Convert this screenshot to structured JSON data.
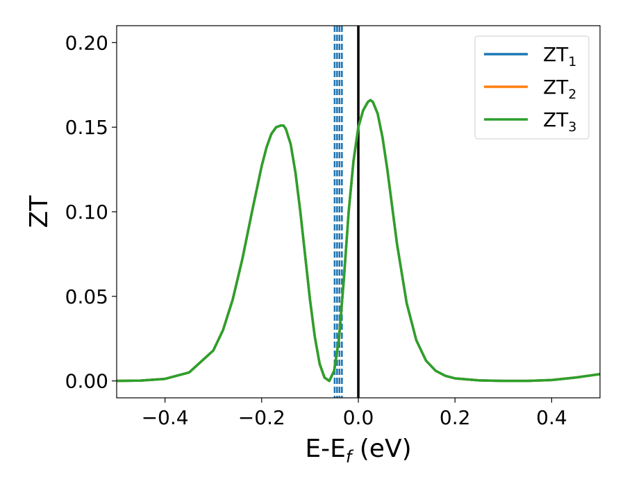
{
  "chart_data": {
    "type": "line",
    "title": "",
    "xlabel": "E-E",
    "xlabel_sub": "f",
    "xlabel_unit": " (eV)",
    "ylabel": "ZT",
    "xlim": [
      -0.5,
      0.5
    ],
    "ylim": [
      -0.01,
      0.21
    ],
    "xticks": [
      -0.4,
      -0.2,
      0.0,
      0.2,
      0.4
    ],
    "xtick_labels": [
      "−0.4",
      "−0.2",
      "0.0",
      "0.2",
      "0.4"
    ],
    "yticks": [
      0.0,
      0.05,
      0.1,
      0.15,
      0.2
    ],
    "ytick_labels": [
      "0.00",
      "0.05",
      "0.10",
      "0.15",
      "0.20"
    ],
    "grid": false,
    "legend_position": "top-right",
    "series": [
      {
        "name": "ZT",
        "sub": "1",
        "color": "#1f77b4",
        "x": [
          -0.5,
          -0.45,
          -0.4,
          -0.35,
          -0.3,
          -0.28,
          -0.26,
          -0.24,
          -0.22,
          -0.2,
          -0.19,
          -0.18,
          -0.17,
          -0.16,
          -0.155,
          -0.15,
          -0.14,
          -0.13,
          -0.12,
          -0.11,
          -0.1,
          -0.09,
          -0.08,
          -0.07,
          -0.06,
          -0.05,
          -0.04,
          -0.03,
          -0.02,
          -0.01,
          0.0,
          0.01,
          0.02,
          0.025,
          0.03,
          0.04,
          0.05,
          0.06,
          0.07,
          0.08,
          0.1,
          0.12,
          0.14,
          0.16,
          0.18,
          0.2,
          0.25,
          0.3,
          0.35,
          0.4,
          0.45,
          0.5
        ],
        "y": [
          0.0,
          0.0002,
          0.0012,
          0.005,
          0.018,
          0.03,
          0.048,
          0.072,
          0.1,
          0.127,
          0.138,
          0.146,
          0.15,
          0.151,
          0.151,
          0.149,
          0.14,
          0.123,
          0.1,
          0.074,
          0.048,
          0.026,
          0.01,
          0.002,
          0.0,
          0.006,
          0.025,
          0.06,
          0.1,
          0.13,
          0.15,
          0.16,
          0.165,
          0.166,
          0.165,
          0.158,
          0.144,
          0.125,
          0.103,
          0.081,
          0.046,
          0.024,
          0.012,
          0.006,
          0.003,
          0.0015,
          0.0003,
          0.0,
          0.0,
          0.0005,
          0.002,
          0.004
        ]
      },
      {
        "name": "ZT",
        "sub": "2",
        "color": "#ff7f0e",
        "x": [
          -0.5,
          -0.45,
          -0.4,
          -0.35,
          -0.3,
          -0.28,
          -0.26,
          -0.24,
          -0.22,
          -0.2,
          -0.19,
          -0.18,
          -0.17,
          -0.16,
          -0.155,
          -0.15,
          -0.14,
          -0.13,
          -0.12,
          -0.11,
          -0.1,
          -0.09,
          -0.08,
          -0.07,
          -0.06,
          -0.05,
          -0.04,
          -0.03,
          -0.02,
          -0.01,
          0.0,
          0.01,
          0.02,
          0.025,
          0.03,
          0.04,
          0.05,
          0.06,
          0.07,
          0.08,
          0.1,
          0.12,
          0.14,
          0.16,
          0.18,
          0.2,
          0.25,
          0.3,
          0.35,
          0.4,
          0.45,
          0.5
        ],
        "y": [
          0.0,
          0.0002,
          0.0012,
          0.005,
          0.018,
          0.03,
          0.048,
          0.072,
          0.1,
          0.127,
          0.138,
          0.146,
          0.15,
          0.151,
          0.151,
          0.149,
          0.14,
          0.123,
          0.1,
          0.074,
          0.048,
          0.026,
          0.01,
          0.002,
          0.0,
          0.006,
          0.025,
          0.06,
          0.1,
          0.13,
          0.15,
          0.16,
          0.165,
          0.166,
          0.165,
          0.158,
          0.144,
          0.125,
          0.103,
          0.081,
          0.046,
          0.024,
          0.012,
          0.006,
          0.003,
          0.0015,
          0.0003,
          0.0,
          0.0,
          0.0005,
          0.002,
          0.004
        ]
      },
      {
        "name": "ZT",
        "sub": "3",
        "color": "#2ca02c",
        "x": [
          -0.5,
          -0.45,
          -0.4,
          -0.35,
          -0.3,
          -0.28,
          -0.26,
          -0.24,
          -0.22,
          -0.2,
          -0.19,
          -0.18,
          -0.17,
          -0.16,
          -0.155,
          -0.15,
          -0.14,
          -0.13,
          -0.12,
          -0.11,
          -0.1,
          -0.09,
          -0.08,
          -0.07,
          -0.06,
          -0.05,
          -0.04,
          -0.03,
          -0.02,
          -0.01,
          0.0,
          0.01,
          0.02,
          0.025,
          0.03,
          0.04,
          0.05,
          0.06,
          0.07,
          0.08,
          0.1,
          0.12,
          0.14,
          0.16,
          0.18,
          0.2,
          0.25,
          0.3,
          0.35,
          0.4,
          0.45,
          0.5
        ],
        "y": [
          0.0,
          0.0002,
          0.0012,
          0.005,
          0.018,
          0.03,
          0.048,
          0.072,
          0.1,
          0.127,
          0.138,
          0.146,
          0.15,
          0.151,
          0.151,
          0.149,
          0.14,
          0.123,
          0.1,
          0.074,
          0.048,
          0.026,
          0.01,
          0.002,
          0.0,
          0.006,
          0.025,
          0.06,
          0.1,
          0.13,
          0.15,
          0.16,
          0.165,
          0.166,
          0.165,
          0.158,
          0.144,
          0.125,
          0.103,
          0.081,
          0.046,
          0.024,
          0.012,
          0.006,
          0.003,
          0.0015,
          0.0003,
          0.0,
          0.0,
          0.0005,
          0.002,
          0.004
        ]
      }
    ],
    "reference_lines": [
      {
        "x": 0.0,
        "color": "#000000",
        "style": "solid"
      },
      {
        "x": -0.049,
        "color": "#1f77b4",
        "style": "dashed"
      },
      {
        "x": -0.044,
        "color": "#1f77b4",
        "style": "dashed"
      },
      {
        "x": -0.039,
        "color": "#1f77b4",
        "style": "dashed"
      },
      {
        "x": -0.034,
        "color": "#1f77b4",
        "style": "dashed"
      }
    ]
  }
}
